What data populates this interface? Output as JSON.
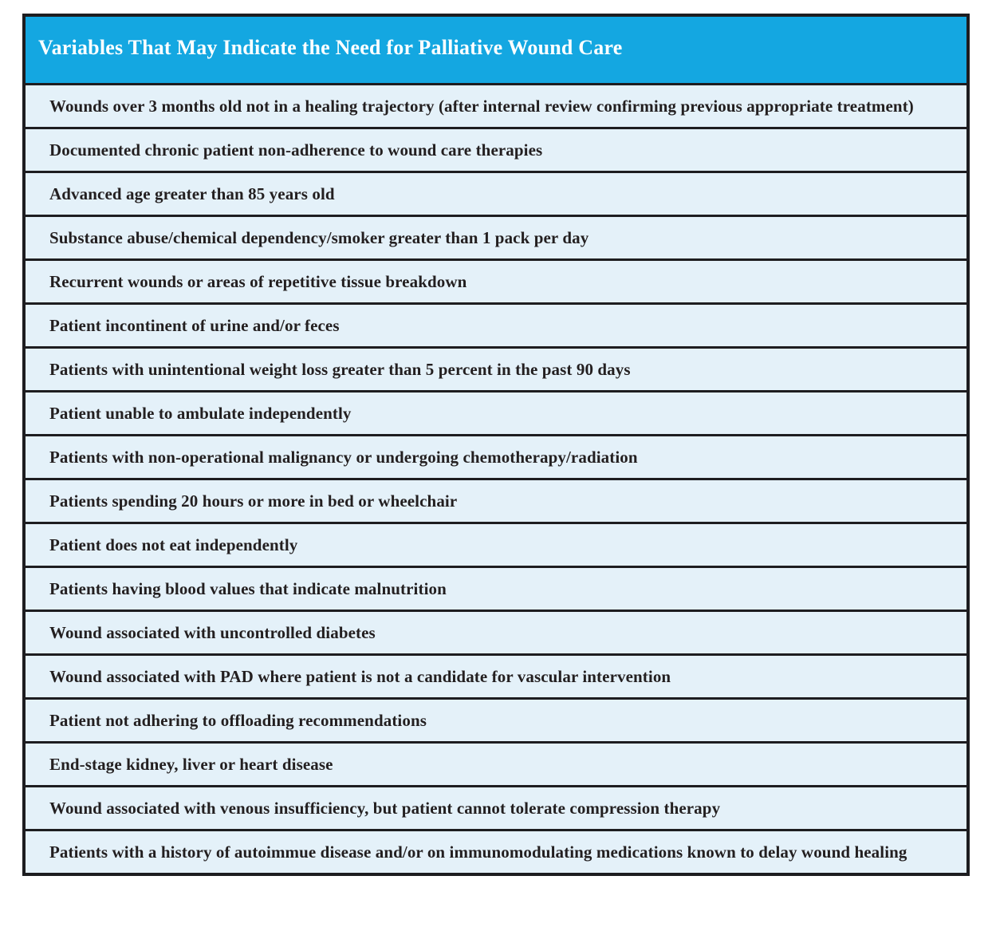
{
  "table": {
    "title": "Variables That May Indicate the Need for Palliative Wound Care",
    "rows": [
      "Wounds over 3 months old not in a healing trajectory (after internal review confirming previous appropriate treatment)",
      "Documented chronic patient non-adherence to wound care therapies",
      "Advanced age greater than 85 years old",
      "Substance abuse/chemical dependency/smoker greater than 1 pack per day",
      "Recurrent wounds or areas of repetitive tissue breakdown",
      "Patient incontinent of urine and/or feces",
      "Patients with unintentional weight loss greater than 5 percent in the past 90 days",
      "Patient unable to ambulate independently",
      "Patients with non-operational malignancy or undergoing chemotherapy/radiation",
      "Patients spending 20 hours or more in bed or wheelchair",
      "Patient does not eat independently",
      "Patients having blood values that indicate malnutrition",
      "Wound associated with uncontrolled diabetes",
      "Wound associated with PAD where patient is not a candidate for vascular intervention",
      "Patient not adhering to offloading recommendations",
      "End-stage kidney, liver or heart disease",
      "Wound associated with venous insufficiency, but patient cannot tolerate compression therapy",
      "Patients with a history of autoimmue disease and/or on immunomodulating medications known to delay wound healing"
    ]
  },
  "colors": {
    "header_background": "#14a7e1",
    "header_text": "#ffffff",
    "row_background": "#e4f1f9",
    "border": "#1d1d20",
    "row_text": "#231f20"
  }
}
